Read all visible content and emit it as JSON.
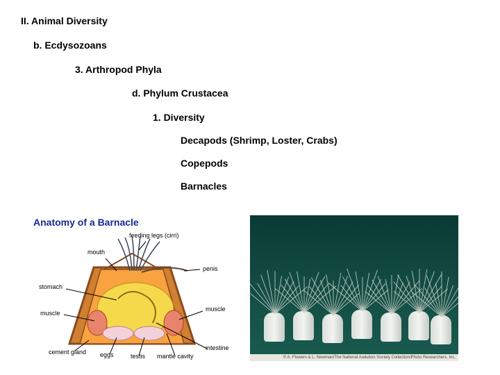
{
  "outline": {
    "l1": "II. Animal Diversity",
    "l2": "b. Ecdysozoans",
    "l3": "3. Arthropod Phyla",
    "l4": "d. Phylum Crustacea",
    "l5": "1. Diversity",
    "l6a": "Decapods (Shrimp, Loster, Crabs)",
    "l6b": "Copepods",
    "l6c": "Barnacles"
  },
  "diagram": {
    "title": "Anatomy of a Barnacle",
    "labels": {
      "mouth": "mouth",
      "feeding_legs": "feeding legs (cirri)",
      "stomach": "stomach",
      "penis": "penis",
      "muscle_l": "muscle",
      "muscle_r": "muscle",
      "cement_gland": "cement gland",
      "eggs": "eggs",
      "testis": "testis",
      "mantle_cavity": "mantle cavity",
      "intestine": "intestine"
    },
    "colors": {
      "title": "#152a90",
      "shell_outer": "#8a4a1f",
      "shell_inner": "#d08030",
      "inner_fill": "#f8a340",
      "body_sac": "#f5d94a",
      "muscle": "#e8846b",
      "gonad": "#f2d2d8",
      "cirri": "#3a4558",
      "leader": "#000000",
      "background": "#ffffff"
    },
    "label_font_size": 9
  },
  "photo": {
    "credit": "© A. Flowers & L. Newman/The National Audubon Society Collection/Photo Researchers, Inc.",
    "bg_gradient": [
      "#0a3a34",
      "#124b42",
      "#1a5b50"
    ],
    "shell_color": "#e8ece7",
    "cirri_color": "#c8cec6"
  }
}
